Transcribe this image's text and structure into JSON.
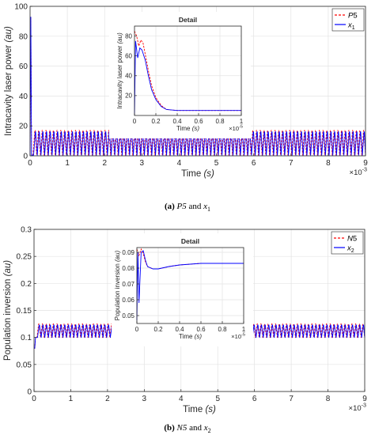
{
  "chart_data": [
    {
      "type": "line",
      "panel": "a",
      "ylabel": "Intracavity laser power",
      "ylabel_unit": "(au)",
      "xlabel": "Time",
      "xlabel_unit": "(s)",
      "x_exponent": "×10",
      "x_exponent_power": "-3",
      "xlim": [
        0,
        9
      ],
      "ylim": [
        0,
        100
      ],
      "xticks": [
        "0",
        "1",
        "2",
        "3",
        "4",
        "5",
        "6",
        "7",
        "8",
        "9"
      ],
      "yticks": [
        "0",
        "20",
        "40",
        "60",
        "80",
        "100"
      ],
      "grid": true,
      "legend_position": "top-right",
      "series": [
        {
          "name": "P5",
          "color": "#ff0000",
          "style": "dashed",
          "initial_peak": 93,
          "low": 0.5,
          "high": 17,
          "oscillations": 90
        },
        {
          "name": "x1",
          "color": "#0000ff",
          "style": "solid",
          "initial_peak": 93,
          "low": 0.5,
          "high": 16,
          "oscillations": 90
        }
      ],
      "inset": {
        "title": "Detail",
        "ylabel": "Intracavity laser power",
        "ylabel_unit": "(au)",
        "xlabel": "Time",
        "xlabel_unit": "(s)",
        "x_exponent": "×10",
        "x_exponent_power": "-5",
        "xlim": [
          0,
          1
        ],
        "ylim": [
          0,
          90
        ],
        "xticks": [
          "0",
          "0.2",
          "0.4",
          "0.6",
          "0.8",
          "1"
        ],
        "yticks": [
          "20",
          "40",
          "60",
          "80"
        ],
        "series": [
          {
            "name": "P5",
            "points": [
              [
                0,
                85
              ],
              [
                0.02,
                80
              ],
              [
                0.04,
                70
              ],
              [
                0.06,
                76
              ],
              [
                0.08,
                73
              ],
              [
                0.1,
                62
              ],
              [
                0.13,
                45
              ],
              [
                0.16,
                30
              ],
              [
                0.2,
                18
              ],
              [
                0.25,
                10
              ],
              [
                0.3,
                6
              ],
              [
                0.4,
                5
              ],
              [
                0.5,
                5
              ],
              [
                0.7,
                5
              ],
              [
                1,
                5
              ]
            ]
          },
          {
            "name": "x1",
            "points": [
              [
                0,
                0
              ],
              [
                0.01,
                75
              ],
              [
                0.03,
                58
              ],
              [
                0.05,
                68
              ],
              [
                0.07,
                66
              ],
              [
                0.1,
                56
              ],
              [
                0.13,
                40
              ],
              [
                0.16,
                26
              ],
              [
                0.2,
                16
              ],
              [
                0.25,
                9
              ],
              [
                0.3,
                6
              ],
              [
                0.4,
                5
              ],
              [
                0.5,
                5
              ],
              [
                0.7,
                5
              ],
              [
                1,
                5
              ]
            ]
          }
        ]
      }
    },
    {
      "type": "line",
      "panel": "b",
      "ylabel": "Population inversion",
      "ylabel_unit": "(au)",
      "xlabel": "Time",
      "xlabel_unit": "(s)",
      "x_exponent": "×10",
      "x_exponent_power": "-3",
      "xlim": [
        0,
        9
      ],
      "ylim": [
        0,
        0.3
      ],
      "xticks": [
        "0",
        "1",
        "2",
        "3",
        "4",
        "5",
        "6",
        "7",
        "8",
        "9"
      ],
      "yticks": [
        "0",
        "0.05",
        "0.1",
        "0.15",
        "0.2",
        "0.25",
        "0.3"
      ],
      "grid": true,
      "legend_position": "top-right",
      "series": [
        {
          "name": "N5",
          "color": "#ff0000",
          "style": "dashed",
          "initial": 0.08,
          "low": 0.1,
          "high": 0.125,
          "oscillations": 90
        },
        {
          "name": "x2",
          "color": "#0000ff",
          "style": "solid",
          "initial": 0.08,
          "low": 0.1,
          "high": 0.123,
          "oscillations": 90
        }
      ],
      "inset": {
        "title": "Detail",
        "ylabel": "Population inversion",
        "ylabel_unit": "(au)",
        "xlabel": "Time",
        "xlabel_unit": "(s)",
        "x_exponent": "×10",
        "x_exponent_power": "-5",
        "xlim": [
          0,
          1
        ],
        "ylim": [
          0.045,
          0.093
        ],
        "xticks": [
          "0",
          "0.2",
          "0.4",
          "0.6",
          "0.8",
          "1"
        ],
        "yticks": [
          "0.05",
          "0.06",
          "0.07",
          "0.08",
          "0.09"
        ],
        "series": [
          {
            "name": "N5",
            "points": [
              [
                0,
                0.092
              ],
              [
                0.02,
                0.088
              ],
              [
                0.04,
                0.092
              ],
              [
                0.06,
                0.089
              ],
              [
                0.08,
                0.084
              ],
              [
                0.1,
                0.081
              ],
              [
                0.15,
                0.0795
              ],
              [
                0.2,
                0.0795
              ],
              [
                0.3,
                0.081
              ],
              [
                0.4,
                0.082
              ],
              [
                0.5,
                0.0825
              ],
              [
                0.6,
                0.083
              ],
              [
                0.7,
                0.083
              ],
              [
                0.8,
                0.083
              ],
              [
                1,
                0.083
              ]
            ]
          },
          {
            "name": "x2",
            "points": [
              [
                0,
                0.047
              ],
              [
                0.01,
                0.09
              ],
              [
                0.02,
                0.058
              ],
              [
                0.04,
                0.09
              ],
              [
                0.06,
                0.091
              ],
              [
                0.08,
                0.085
              ],
              [
                0.1,
                0.081
              ],
              [
                0.15,
                0.0795
              ],
              [
                0.2,
                0.0795
              ],
              [
                0.3,
                0.081
              ],
              [
                0.4,
                0.082
              ],
              [
                0.5,
                0.0825
              ],
              [
                0.6,
                0.083
              ],
              [
                0.7,
                0.083
              ],
              [
                0.8,
                0.083
              ],
              [
                1,
                0.083
              ]
            ]
          }
        ]
      }
    }
  ],
  "captions": [
    {
      "label": "(a)",
      "series_a": "P5",
      "joiner": "and",
      "series_b": "x",
      "sub": "1"
    },
    {
      "label": "(b)",
      "series_a": "N5",
      "joiner": "and",
      "series_b": "x",
      "sub": "2"
    }
  ]
}
